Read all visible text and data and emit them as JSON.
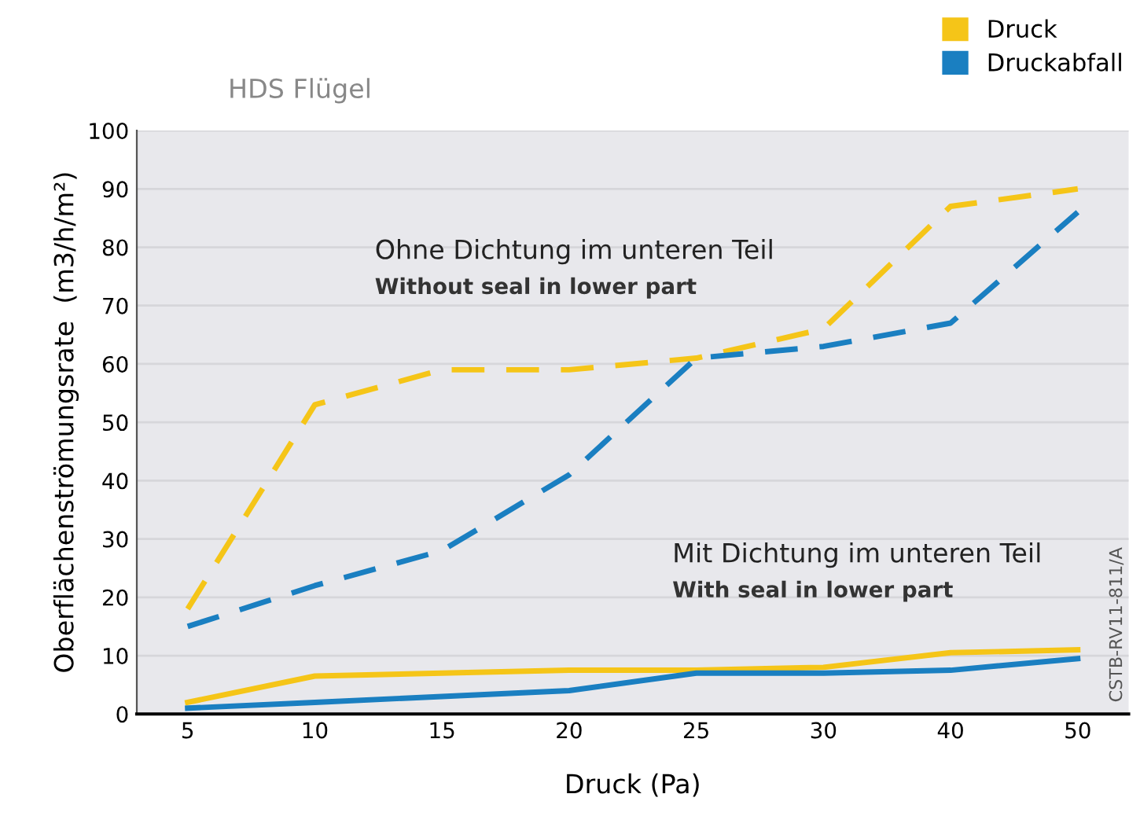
{
  "chart_data": {
    "type": "line",
    "title": "HDS Flügel",
    "xlabel": "Druck (Pa)",
    "ylabel": "Oberflächenströmungsrate  (m3/h/m²)",
    "categories": [
      "5",
      "10",
      "15",
      "20",
      "25",
      "30",
      "40",
      "50"
    ],
    "series": [
      {
        "name": "Druck",
        "color": "#f5c518",
        "line_style": "dashed",
        "values": [
          18,
          53,
          59,
          59,
          61,
          66,
          87,
          90
        ]
      },
      {
        "name": "Druckabfall",
        "color": "#1a7fc1",
        "line_style": "dashed",
        "values": [
          15,
          22,
          28,
          41,
          61,
          63,
          67,
          86
        ]
      },
      {
        "color": "#f5c518",
        "line_style": "solid",
        "values": [
          2,
          6.5,
          7,
          7.5,
          7.5,
          8,
          10.5,
          11
        ]
      },
      {
        "color": "#1a7fc1",
        "line_style": "solid",
        "values": [
          1,
          2,
          3,
          4,
          7,
          7,
          7.5,
          9.5
        ]
      }
    ],
    "ylim": [
      0,
      100
    ],
    "yticks": [
      0,
      10,
      20,
      30,
      40,
      50,
      60,
      70,
      80,
      90,
      100
    ],
    "grid": "y",
    "legend": "top right",
    "marker": "none",
    "annotations": [
      "Ohne Dichtung im unteren Teil",
      "Without seal in lower part",
      "Mit Dichtung im unteren Teil",
      "With seal in lower part",
      "CSTB-RV11-811/A"
    ]
  }
}
